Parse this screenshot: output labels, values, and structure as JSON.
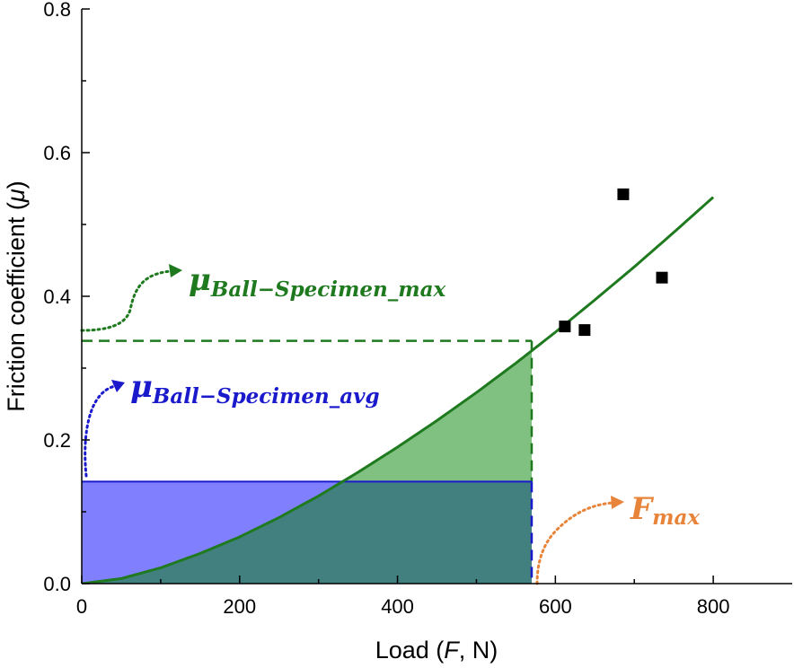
{
  "chart_data": {
    "type": "scatter",
    "xlabel": {
      "pre": "Load (",
      "italic": "F",
      "post": ", N)"
    },
    "ylabel": {
      "pre": "Friction coefficient (",
      "italic": "μ",
      "post": ")"
    },
    "xlim": [
      0,
      900
    ],
    "ylim": [
      0,
      0.8
    ],
    "x_ticks": [
      0,
      200,
      400,
      600,
      800
    ],
    "x_tick_labels": [
      "0",
      "200",
      "400",
      "600",
      "800"
    ],
    "y_ticks": [
      0.0,
      0.2,
      0.4,
      0.6,
      0.8
    ],
    "y_tick_labels": [
      "0.0",
      "0.2",
      "0.4",
      "0.6",
      "0.8"
    ],
    "grid": false,
    "series": [
      {
        "kind": "points",
        "marker": "square",
        "color": "#000000",
        "x": [
          612,
          637,
          686,
          735
        ],
        "y": [
          0.358,
          0.353,
          0.542,
          0.426
        ]
      },
      {
        "kind": "fit-curve",
        "color": "#1f7a1f",
        "x": [
          0,
          50,
          100,
          150,
          200,
          250,
          300,
          350,
          400,
          450,
          500,
          550,
          600,
          650,
          700,
          750,
          800
        ],
        "y": [
          0.0,
          0.007,
          0.022,
          0.042,
          0.065,
          0.092,
          0.122,
          0.155,
          0.19,
          0.227,
          0.266,
          0.307,
          0.35,
          0.395,
          0.441,
          0.489,
          0.538
        ]
      }
    ],
    "reference": {
      "f_max": 570,
      "mu_max": 0.338,
      "mu_avg": 0.142
    },
    "annotations": [
      {
        "text": "μ",
        "sub": "Ball−Specimen_max",
        "color": "#1f7a1f"
      },
      {
        "text": "μ",
        "sub": "Ball−Specimen_avg",
        "color": "#1a1acc"
      },
      {
        "text": "F",
        "sub": "max",
        "color": "#e8843a"
      }
    ],
    "colors": {
      "green_fill": "#80c080",
      "blue_fill": "#8080ff",
      "overlap_fill": "#428080",
      "green_line": "#1f7a1f",
      "blue_line": "#1a1acc",
      "orange": "#e8843a"
    }
  }
}
